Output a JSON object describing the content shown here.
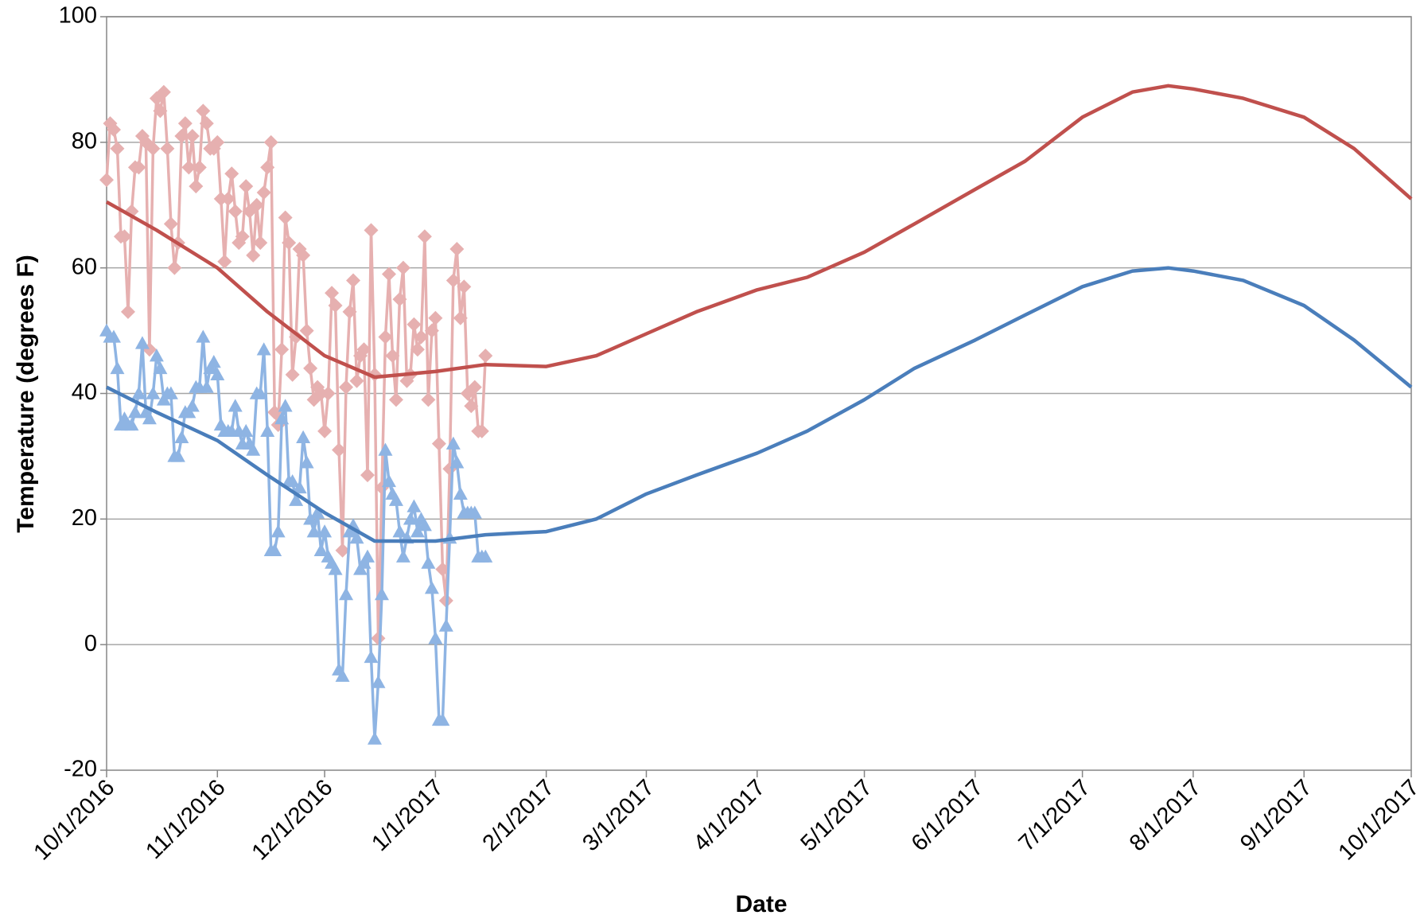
{
  "chart_data": {
    "type": "line",
    "y_label": "Temperature (degrees F)",
    "x_label": "Date",
    "xlim": [
      "10/1/2016",
      "10/1/2017"
    ],
    "xticks": [
      "10/1/2016",
      "11/1/2016",
      "12/1/2016",
      "1/1/2017",
      "2/1/2017",
      "3/1/2017",
      "4/1/2017",
      "5/1/2017",
      "6/1/2017",
      "7/1/2017",
      "8/1/2017",
      "9/1/2017",
      "10/1/2017"
    ],
    "ylim": [
      -20,
      100
    ],
    "yticks": [
      -20,
      0,
      20,
      40,
      60,
      80,
      100
    ],
    "grid": true,
    "series": [
      {
        "color": "#e6b0b0",
        "marker": "diamond",
        "x": [
          "10/1/2016",
          "10/2/2016",
          "10/3/2016",
          "10/4/2016",
          "10/5/2016",
          "10/6/2016",
          "10/7/2016",
          "10/8/2016",
          "10/9/2016",
          "10/10/2016",
          "10/11/2016",
          "10/12/2016",
          "10/13/2016",
          "10/14/2016",
          "10/15/2016",
          "10/16/2016",
          "10/17/2016",
          "10/18/2016",
          "10/19/2016",
          "10/20/2016",
          "10/21/2016",
          "10/22/2016",
          "10/23/2016",
          "10/24/2016",
          "10/25/2016",
          "10/26/2016",
          "10/27/2016",
          "10/28/2016",
          "10/29/2016",
          "10/30/2016",
          "10/31/2016",
          "11/1/2016",
          "11/2/2016",
          "11/3/2016",
          "11/4/2016",
          "11/5/2016",
          "11/6/2016",
          "11/7/2016",
          "11/8/2016",
          "11/9/2016",
          "11/10/2016",
          "11/11/2016",
          "11/12/2016",
          "11/13/2016",
          "11/14/2016",
          "11/15/2016",
          "11/16/2016",
          "11/17/2016",
          "11/18/2016",
          "11/19/2016",
          "11/20/2016",
          "11/21/2016",
          "11/22/2016",
          "11/23/2016",
          "11/24/2016",
          "11/25/2016",
          "11/26/2016",
          "11/27/2016",
          "11/28/2016",
          "11/29/2016",
          "11/30/2016",
          "12/1/2016",
          "12/2/2016",
          "12/3/2016",
          "12/4/2016",
          "12/5/2016",
          "12/6/2016",
          "12/7/2016",
          "12/8/2016",
          "12/9/2016",
          "12/10/2016",
          "12/11/2016",
          "12/12/2016",
          "12/13/2016",
          "12/14/2016",
          "12/15/2016",
          "12/16/2016",
          "12/17/2016",
          "12/18/2016",
          "12/19/2016",
          "12/20/2016",
          "12/21/2016",
          "12/22/2016",
          "12/23/2016",
          "12/24/2016",
          "12/25/2016",
          "12/26/2016",
          "12/27/2016",
          "12/28/2016",
          "12/29/2016",
          "12/30/2016",
          "12/31/2016",
          "1/1/2017",
          "1/2/2017",
          "1/3/2017",
          "1/4/2017",
          "1/5/2017",
          "1/6/2017",
          "1/7/2017",
          "1/8/2017",
          "1/9/2017",
          "1/10/2017",
          "1/11/2017",
          "1/12/2017",
          "1/13/2017",
          "1/14/2017",
          "1/15/2017"
        ],
        "values": [
          74,
          83,
          82,
          79,
          65,
          65,
          53,
          69,
          76,
          76,
          81,
          80,
          47,
          79,
          87,
          85,
          88,
          79,
          67,
          60,
          64,
          81,
          83,
          76,
          81,
          73,
          76,
          85,
          83,
          79,
          79,
          80,
          71,
          61,
          71,
          75,
          69,
          64,
          65,
          73,
          69,
          62,
          70,
          64,
          72,
          76,
          80,
          37,
          35,
          47,
          68,
          64,
          43,
          49,
          63,
          62,
          50,
          44,
          39,
          41,
          40,
          34,
          40,
          56,
          54,
          31,
          15,
          41,
          53,
          58,
          42,
          46,
          47,
          27,
          66,
          43,
          1,
          25,
          49,
          59,
          46,
          39,
          55,
          60,
          42,
          43,
          51,
          47,
          49,
          65,
          39,
          50,
          52,
          32,
          12,
          7,
          28,
          58,
          63,
          52,
          57,
          40,
          38,
          41,
          34,
          34,
          46
        ]
      },
      {
        "color": "#8eb4e3",
        "marker": "triangle",
        "x": [
          "10/1/2016",
          "10/2/2016",
          "10/3/2016",
          "10/4/2016",
          "10/5/2016",
          "10/6/2016",
          "10/7/2016",
          "10/8/2016",
          "10/9/2016",
          "10/10/2016",
          "10/11/2016",
          "10/12/2016",
          "10/13/2016",
          "10/14/2016",
          "10/15/2016",
          "10/16/2016",
          "10/17/2016",
          "10/18/2016",
          "10/19/2016",
          "10/20/2016",
          "10/21/2016",
          "10/22/2016",
          "10/23/2016",
          "10/24/2016",
          "10/25/2016",
          "10/26/2016",
          "10/27/2016",
          "10/28/2016",
          "10/29/2016",
          "10/30/2016",
          "10/31/2016",
          "11/1/2016",
          "11/2/2016",
          "11/3/2016",
          "11/4/2016",
          "11/5/2016",
          "11/6/2016",
          "11/7/2016",
          "11/8/2016",
          "11/9/2016",
          "11/10/2016",
          "11/11/2016",
          "11/12/2016",
          "11/13/2016",
          "11/14/2016",
          "11/15/2016",
          "11/16/2016",
          "11/17/2016",
          "11/18/2016",
          "11/19/2016",
          "11/20/2016",
          "11/21/2016",
          "11/22/2016",
          "11/23/2016",
          "11/24/2016",
          "11/25/2016",
          "11/26/2016",
          "11/27/2016",
          "11/28/2016",
          "11/29/2016",
          "11/30/2016",
          "12/1/2016",
          "12/2/2016",
          "12/3/2016",
          "12/4/2016",
          "12/5/2016",
          "12/6/2016",
          "12/7/2016",
          "12/8/2016",
          "12/9/2016",
          "12/10/2016",
          "12/11/2016",
          "12/12/2016",
          "12/13/2016",
          "12/14/2016",
          "12/15/2016",
          "12/16/2016",
          "12/17/2016",
          "12/18/2016",
          "12/19/2016",
          "12/20/2016",
          "12/21/2016",
          "12/22/2016",
          "12/23/2016",
          "12/24/2016",
          "12/25/2016",
          "12/26/2016",
          "12/27/2016",
          "12/28/2016",
          "12/29/2016",
          "12/30/2016",
          "12/31/2016",
          "1/1/2017",
          "1/2/2017",
          "1/3/2017",
          "1/4/2017",
          "1/5/2017",
          "1/6/2017",
          "1/7/2017",
          "1/8/2017",
          "1/9/2017",
          "1/10/2017",
          "1/11/2017",
          "1/12/2017",
          "1/13/2017",
          "1/14/2017",
          "1/15/2017"
        ],
        "values": [
          50,
          49,
          49,
          44,
          35,
          36,
          35,
          35,
          37,
          40,
          48,
          37,
          36,
          40,
          46,
          44,
          39,
          40,
          40,
          30,
          30,
          33,
          37,
          37,
          38,
          41,
          41,
          49,
          41,
          44,
          45,
          43,
          35,
          34,
          34,
          34,
          38,
          34,
          32,
          34,
          32,
          31,
          40,
          40,
          47,
          34,
          15,
          15,
          18,
          36,
          38,
          26,
          26,
          23,
          25,
          33,
          29,
          20,
          18,
          21,
          15,
          18,
          14,
          13,
          12,
          -4,
          -5,
          8,
          18,
          19,
          17,
          12,
          13,
          14,
          -2,
          -15,
          -6,
          8,
          31,
          26,
          24,
          23,
          18,
          14,
          17,
          20,
          22,
          18,
          20,
          19,
          13,
          9,
          1,
          -12,
          -12,
          3,
          17,
          32,
          29,
          24,
          21,
          21,
          21,
          21,
          14,
          14,
          14
        ]
      },
      {
        "color": "#c0504d",
        "marker": "none",
        "x": [
          "10/1/2016",
          "10/15/2016",
          "11/1/2016",
          "11/15/2016",
          "12/1/2016",
          "12/15/2016",
          "1/1/2017",
          "1/15/2017",
          "2/1/2017",
          "2/15/2017",
          "3/1/2017",
          "3/15/2017",
          "4/1/2017",
          "4/15/2017",
          "5/1/2017",
          "5/15/2017",
          "6/1/2017",
          "6/15/2017",
          "7/1/2017",
          "7/15/2017",
          "7/25/2017",
          "8/1/2017",
          "8/15/2017",
          "9/1/2017",
          "9/15/2017",
          "10/1/2017"
        ],
        "values": [
          70.5,
          66,
          60,
          53,
          46,
          42.6,
          43.5,
          44.6,
          44.3,
          46,
          49.5,
          53,
          56.5,
          58.5,
          62.5,
          67,
          72.5,
          77,
          84,
          88,
          89,
          88.5,
          87,
          84,
          79,
          71
        ]
      },
      {
        "color": "#4a7ebb",
        "marker": "none",
        "x": [
          "10/1/2016",
          "10/15/2016",
          "11/1/2016",
          "11/15/2016",
          "12/1/2016",
          "12/15/2016",
          "1/1/2017",
          "1/15/2017",
          "2/1/2017",
          "2/15/2017",
          "3/1/2017",
          "3/15/2017",
          "4/1/2017",
          "4/15/2017",
          "5/1/2017",
          "5/15/2017",
          "6/1/2017",
          "6/15/2017",
          "7/1/2017",
          "7/15/2017",
          "7/25/2017",
          "8/1/2017",
          "8/15/2017",
          "9/1/2017",
          "9/15/2017",
          "10/1/2017"
        ],
        "values": [
          41,
          37,
          32.5,
          27,
          21,
          16.5,
          16.5,
          17.5,
          18,
          20,
          24,
          27,
          30.5,
          34,
          39,
          44,
          48.5,
          52.5,
          57,
          59.5,
          60,
          59.5,
          58,
          54,
          48.5,
          41
        ]
      }
    ]
  }
}
